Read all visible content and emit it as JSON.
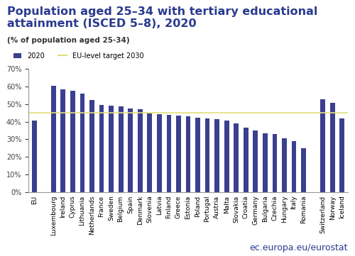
{
  "chart_data": {
    "type": "bar",
    "title": "Population aged 25–34 with tertiary educational attainment (ISCED 5–8), 2020",
    "subtitle": "(% of population aged 25-34)",
    "categories": [
      "EU",
      null,
      "Luxembourg",
      "Ireland",
      "Cyprus",
      "Lithuania",
      "Netherlands",
      "France",
      "Sweden",
      "Belgium",
      "Spain",
      "Denmark",
      "Slovenia",
      "Latvia",
      "Finland",
      "Greece",
      "Estonia",
      "Poland",
      "Portugal",
      "Austria",
      "Malta",
      "Slovakia",
      "Croatia",
      "Germany",
      "Bulgaria",
      "Czechia",
      "Hungary",
      "Italy",
      "Romania",
      null,
      "Switzerland",
      "Norway",
      "Iceland"
    ],
    "series": [
      {
        "name": "2020",
        "color": "#3a3f8f",
        "values": [
          40.9,
          null,
          60.6,
          58.4,
          57.8,
          56.2,
          52.3,
          49.4,
          49.3,
          48.6,
          47.4,
          47.1,
          44.9,
          44.4,
          43.9,
          43.7,
          43.2,
          42.4,
          41.9,
          41.6,
          40.7,
          39.0,
          36.6,
          35.1,
          33.6,
          33.0,
          30.7,
          28.9,
          24.9,
          null,
          52.8,
          50.8,
          41.8
        ]
      }
    ],
    "target": {
      "name": "EU-level target 2030",
      "value": 45,
      "color": "#e3df7a"
    },
    "ylim": [
      0,
      70
    ],
    "yticks": [
      {
        "value": 0,
        "label": "0%"
      },
      {
        "value": 10,
        "label": "10%"
      },
      {
        "value": 20,
        "label": "20%"
      },
      {
        "value": 30,
        "label": "30%"
      },
      {
        "value": 40,
        "label": "40%"
      },
      {
        "value": 50,
        "label": "50%"
      },
      {
        "value": 60,
        "label": "60%"
      },
      {
        "value": 70,
        "label": "70%"
      }
    ],
    "grid": false,
    "legend": "upper left",
    "source": "ec.europa.eu/eurostat"
  }
}
